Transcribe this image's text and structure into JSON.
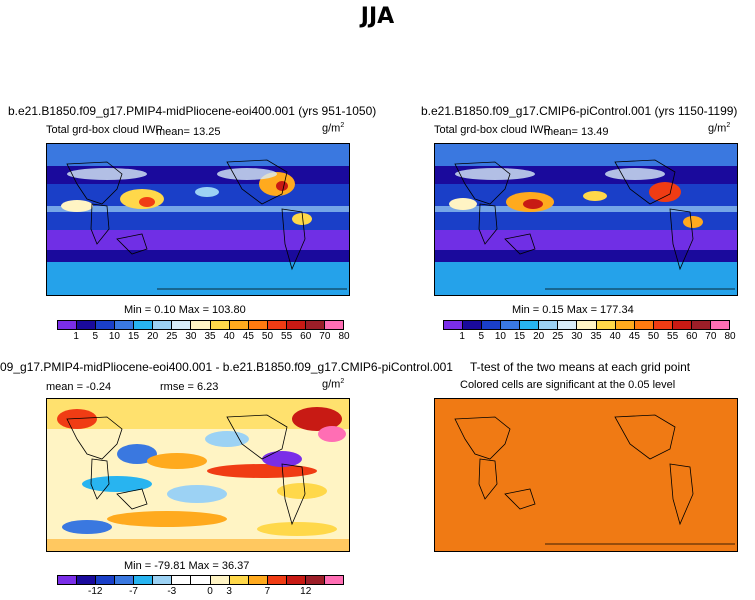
{
  "page_title": "JJA",
  "panels": {
    "p1": {
      "title": "b.e21.B1850.f09_g17.PMIP4-midPliocene-eoi400.001 (yrs 951-1050)",
      "variable": "Total grd-box cloud IWP",
      "mean_text": "mean=   13.25",
      "units": "g/m",
      "units_exp": "2",
      "minmax": "Min =   0.10 Max = 103.80"
    },
    "p2": {
      "title": "b.e21.B1850.f09_g17.CMIP6-piControl.001 (yrs 1150-1199)",
      "variable": "Total grd-box cloud IWP",
      "mean_text": "mean=   13.49",
      "units": "g/m",
      "units_exp": "2",
      "minmax": "Min =   0.15 Max = 177.34"
    },
    "p3": {
      "title": "09_g17.PMIP4-midPliocene-eoi400.001 - b.e21.B1850.f09_g17.CMIP6-piControl.001",
      "mean_text": "mean =  -0.24",
      "rmse_text": "rmse =    6.23",
      "units": "g/m",
      "units_exp": "2",
      "minmax": "Min = -79.81 Max =  36.37"
    },
    "p4": {
      "title": "T-test of the two means at each grid point",
      "subtitle": "Colored cells are significant at the 0.05 level",
      "fill_color": "#f07a14"
    }
  },
  "colorbars": {
    "absolute": {
      "colors": [
        "#7a2ee8",
        "#1a0a9c",
        "#1a3fc8",
        "#3a78e0",
        "#28b4f0",
        "#9cd2f4",
        "#d8ecf8",
        "#fff4c4",
        "#ffd84a",
        "#ffaa1e",
        "#ff7a10",
        "#f03c14",
        "#c81a14",
        "#9c1e28",
        "#ff6eb4"
      ],
      "labels": [
        "1",
        "5",
        "10",
        "15",
        "20",
        "25",
        "30",
        "35",
        "40",
        "45",
        "50",
        "55",
        "60",
        "70",
        "80"
      ]
    },
    "difference": {
      "colors": [
        "#7a2ee8",
        "#1a0a9c",
        "#1a3fc8",
        "#3a78e0",
        "#28b4f0",
        "#9cd2f4",
        "#ffffff",
        "#ffffff",
        "#fff4c4",
        "#ffd84a",
        "#ffaa1e",
        "#f03c14",
        "#c81a14",
        "#9c1e28",
        "#ff6eb4"
      ],
      "labels": [
        "-12",
        "-7",
        "-3",
        "0",
        "3",
        "7",
        "12"
      ]
    }
  },
  "chart_data": [
    {
      "type": "heatmap",
      "title": "b.e21.B1850.f09_g17.PMIP4-midPliocene-eoi400.001 (yrs 951-1050)",
      "variable": "Total grd-box cloud IWP",
      "units": "g/m2",
      "mean": 13.25,
      "min": 0.1,
      "max": 103.8,
      "levels": [
        1,
        5,
        10,
        15,
        20,
        25,
        30,
        35,
        40,
        45,
        50,
        55,
        60,
        70,
        80
      ]
    },
    {
      "type": "heatmap",
      "title": "b.e21.B1850.f09_g17.CMIP6-piControl.001 (yrs 1150-1199)",
      "variable": "Total grd-box cloud IWP",
      "units": "g/m2",
      "mean": 13.49,
      "min": 0.15,
      "max": 177.34,
      "levels": [
        1,
        5,
        10,
        15,
        20,
        25,
        30,
        35,
        40,
        45,
        50,
        55,
        60,
        70,
        80
      ]
    },
    {
      "type": "heatmap",
      "title": "09_g17.PMIP4-midPliocene-eoi400.001 - b.e21.B1850.f09_g17.CMIP6-piControl.001",
      "units": "g/m2",
      "mean": -0.24,
      "rmse": 6.23,
      "min": -79.81,
      "max": 36.37,
      "labeled_levels": [
        -12,
        -7,
        -3,
        0,
        3,
        7,
        12
      ]
    },
    {
      "type": "heatmap",
      "title": "T-test of the two means at each grid point",
      "subtitle": "Colored cells are significant at the 0.05 level"
    }
  ]
}
